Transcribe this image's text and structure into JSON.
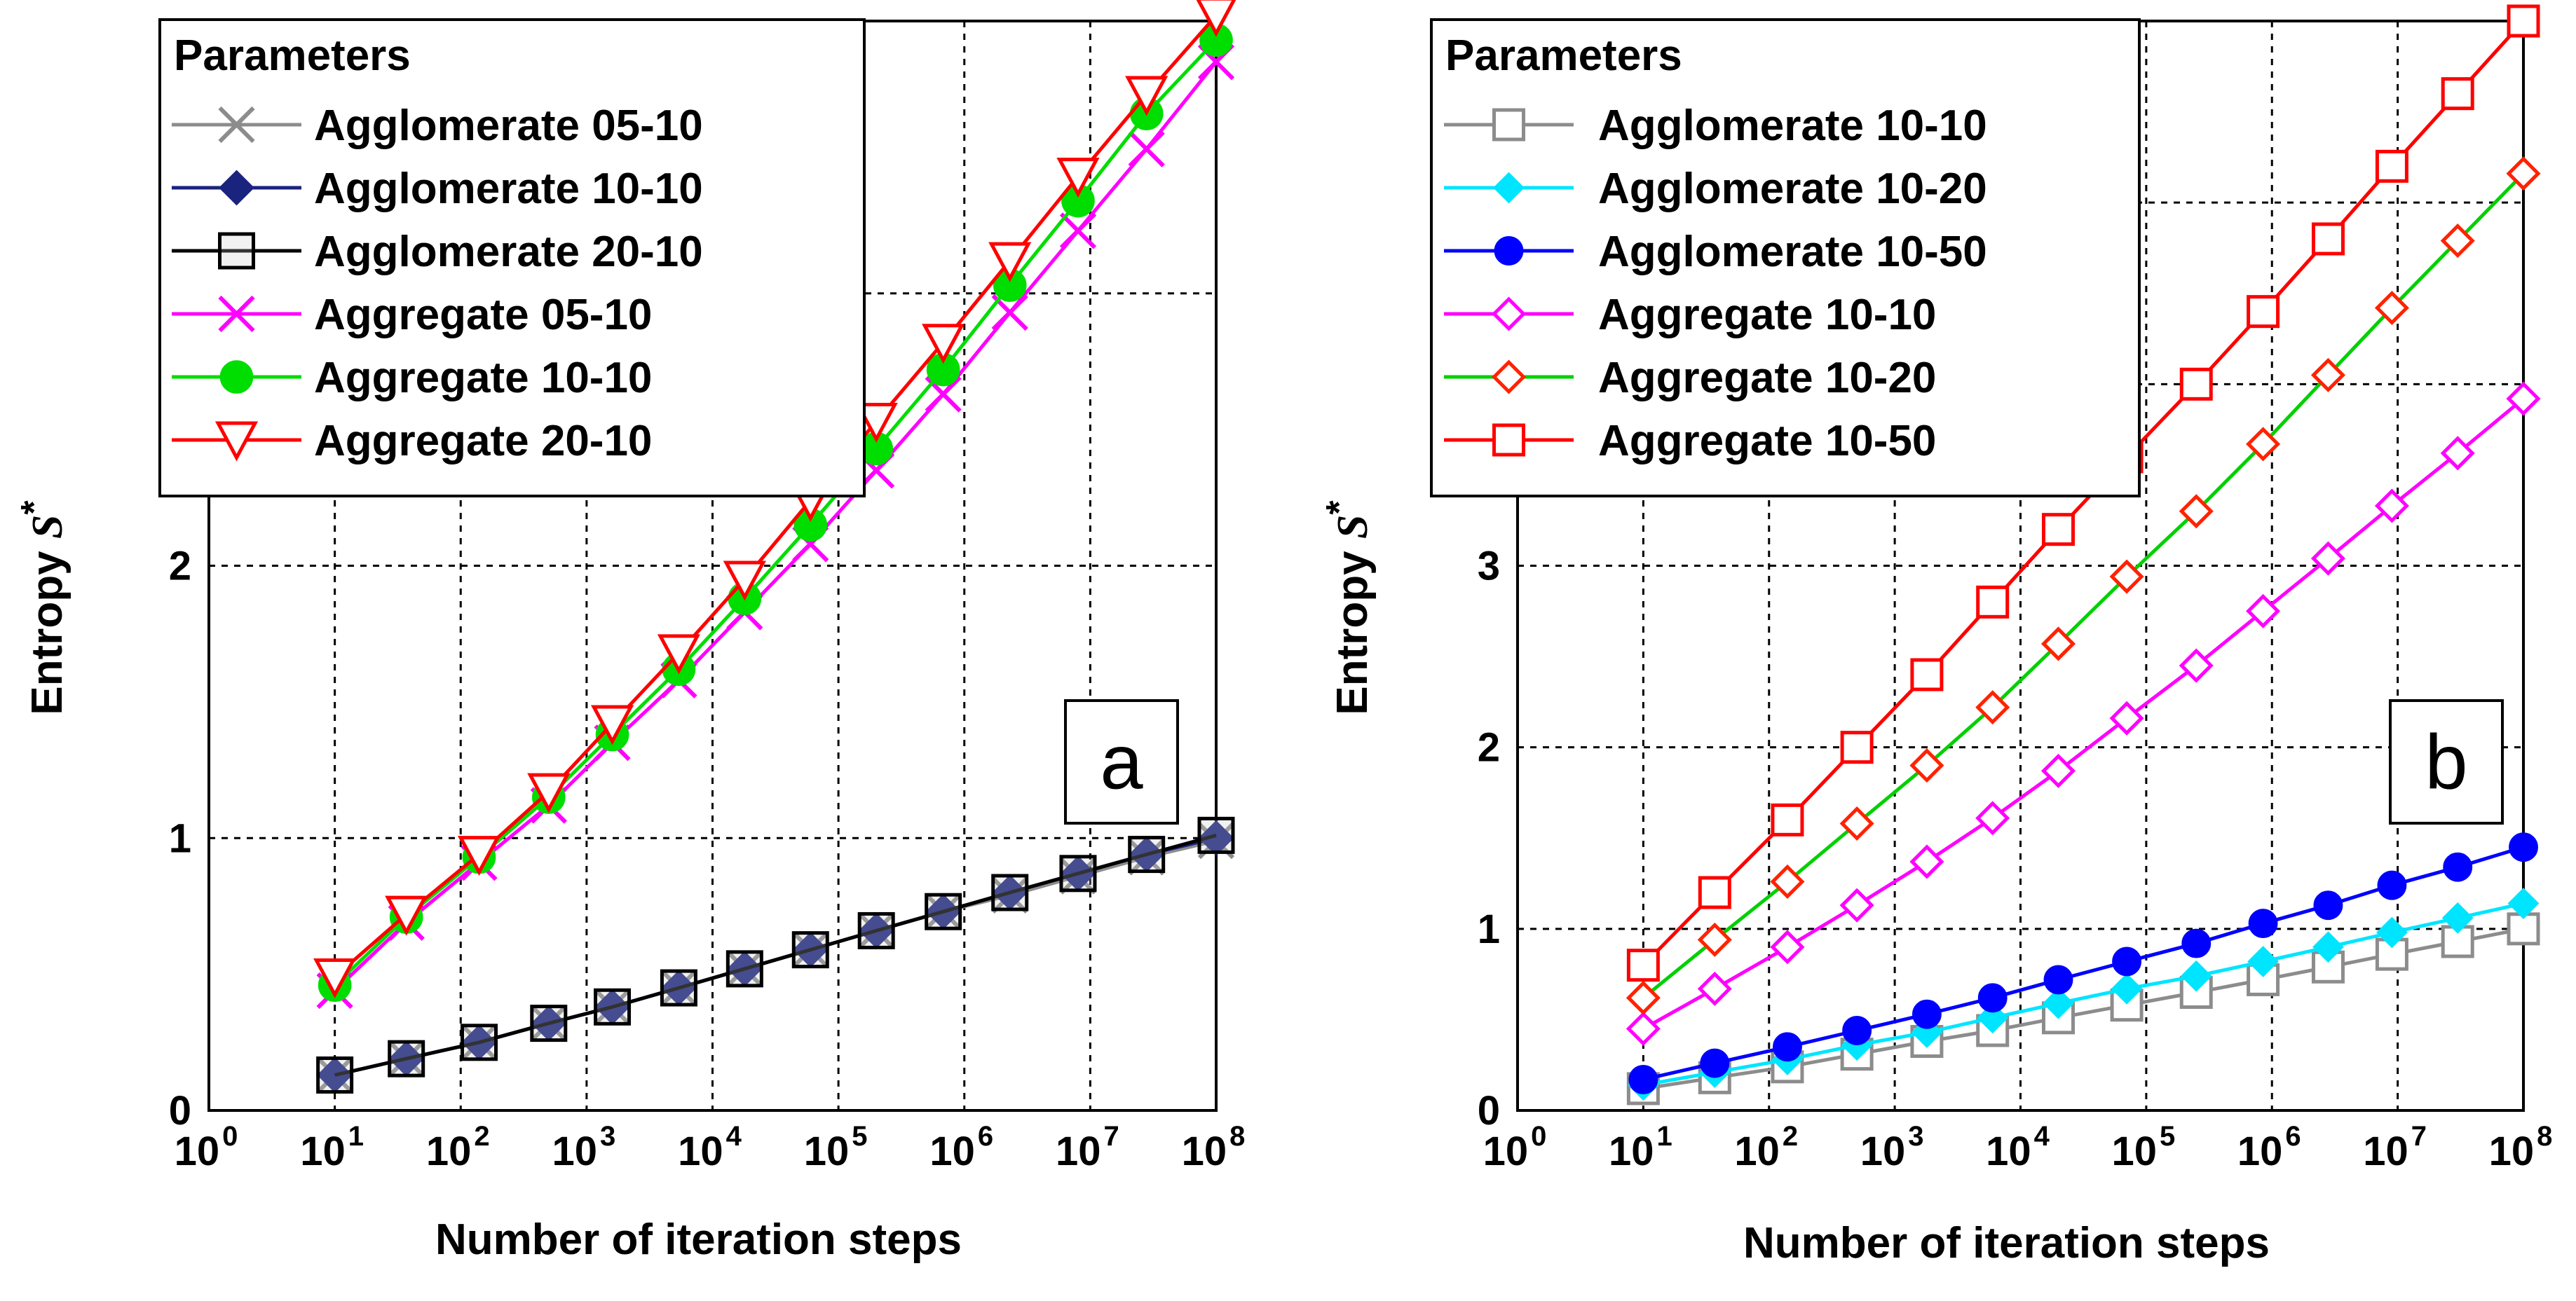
{
  "chart_data": [
    {
      "type": "line",
      "panel_label": "a",
      "xscale": "log",
      "xlim": [
        1,
        100000000
      ],
      "ylim": [
        0,
        4
      ],
      "xlabel": "Number of iteration steps",
      "ylabel_main": "Entropy ",
      "ylabel_symbol": "S*",
      "x_tick_labels": [
        "10^0",
        "10^1",
        "10^2",
        "10^3",
        "10^4",
        "10^5",
        "10^6",
        "10^7",
        "10^8"
      ],
      "y_ticks": [
        0,
        1,
        2,
        3,
        4
      ],
      "y_tick_labels": [
        "0",
        "1",
        "2"
      ],
      "legend_title": "Parameters",
      "legend_position": "top-left",
      "x": [
        10,
        37,
        140,
        500,
        1600,
        5400,
        18000,
        60000,
        200000,
        680000,
        2300000,
        8000000,
        28000000,
        100000000
      ],
      "series": [
        {
          "name": "Agglomerate 05-10",
          "color": "#8c8c8c",
          "marker": "x",
          "values": [
            0.13,
            0.19,
            0.25,
            0.32,
            0.38,
            0.45,
            0.52,
            0.59,
            0.66,
            0.73,
            0.79,
            0.86,
            0.93,
            0.99
          ]
        },
        {
          "name": "Agglomerate 10-10",
          "color": "#1a237e",
          "marker": "diamond",
          "values": [
            0.13,
            0.19,
            0.25,
            0.32,
            0.38,
            0.45,
            0.52,
            0.59,
            0.66,
            0.73,
            0.8,
            0.87,
            0.94,
            1.0
          ]
        },
        {
          "name": "Agglomerate 20-10",
          "color": "#000000",
          "marker": "square",
          "values": [
            0.13,
            0.19,
            0.25,
            0.32,
            0.38,
            0.45,
            0.52,
            0.59,
            0.66,
            0.73,
            0.8,
            0.87,
            0.94,
            1.01
          ]
        },
        {
          "name": "Aggregate 05-10",
          "color": "#ff00ff",
          "marker": "x",
          "values": [
            0.44,
            0.69,
            0.91,
            1.12,
            1.35,
            1.58,
            1.83,
            2.08,
            2.35,
            2.63,
            2.93,
            3.23,
            3.53,
            3.85
          ]
        },
        {
          "name": "Aggregate 10-10",
          "color": "#00dd00",
          "marker": "circle",
          "values": [
            0.46,
            0.71,
            0.93,
            1.15,
            1.38,
            1.62,
            1.88,
            2.15,
            2.43,
            2.72,
            3.03,
            3.34,
            3.66,
            3.93
          ]
        },
        {
          "name": "Aggregate 20-10",
          "color": "#ff0000",
          "marker": "triangle-down",
          "values": [
            0.49,
            0.72,
            0.94,
            1.17,
            1.42,
            1.68,
            1.95,
            2.24,
            2.53,
            2.82,
            3.12,
            3.43,
            3.73,
            4.02
          ]
        }
      ]
    },
    {
      "type": "line",
      "panel_label": "b",
      "xscale": "log",
      "xlim": [
        1,
        100000000
      ],
      "ylim": [
        0,
        6
      ],
      "xlabel": "Number of iteration steps",
      "ylabel_main": "Entropy ",
      "ylabel_symbol": "S*",
      "x_tick_labels": [
        "10^0",
        "10^1",
        "10^2",
        "10^3",
        "10^4",
        "10^5",
        "10^6",
        "10^7",
        "10^8"
      ],
      "y_ticks": [
        0,
        1,
        2,
        3,
        4,
        5,
        6
      ],
      "y_tick_labels": [
        "0",
        "1",
        "2",
        "3"
      ],
      "legend_title": "Parameters",
      "legend_position": "top-left",
      "x": [
        10,
        37,
        140,
        500,
        1800,
        6000,
        20000,
        70000,
        250000,
        850000,
        2800000,
        9000000,
        30000000,
        100000000
      ],
      "series": [
        {
          "name": "Agglomerate 10-10",
          "color": "#8c8c8c",
          "marker": "square",
          "values": [
            0.12,
            0.18,
            0.24,
            0.31,
            0.38,
            0.44,
            0.51,
            0.58,
            0.65,
            0.72,
            0.79,
            0.86,
            0.93,
            1.0
          ]
        },
        {
          "name": "Agglomerate  10-20",
          "color": "#00e5ff",
          "marker": "diamond",
          "values": [
            0.14,
            0.21,
            0.28,
            0.36,
            0.43,
            0.51,
            0.59,
            0.67,
            0.74,
            0.82,
            0.9,
            0.98,
            1.06,
            1.14
          ]
        },
        {
          "name": "Agglomerate 10-50",
          "color": "#0000ff",
          "marker": "circle",
          "values": [
            0.17,
            0.26,
            0.35,
            0.44,
            0.53,
            0.62,
            0.72,
            0.82,
            0.92,
            1.03,
            1.13,
            1.24,
            1.34,
            1.45
          ]
        },
        {
          "name": "Aggregate 10-10",
          "color": "#ff00ff",
          "marker": "open-diamond",
          "values": [
            0.45,
            0.67,
            0.9,
            1.13,
            1.37,
            1.61,
            1.87,
            2.16,
            2.45,
            2.75,
            3.04,
            3.33,
            3.62,
            3.92
          ]
        },
        {
          "name": "Aggregate 10-20",
          "color": "#00d000",
          "marker": "open-diamond-red",
          "values": [
            0.62,
            0.94,
            1.26,
            1.58,
            1.9,
            2.22,
            2.57,
            2.94,
            3.3,
            3.67,
            4.05,
            4.42,
            4.79,
            5.16
          ]
        },
        {
          "name": "Aggregate 10-50",
          "color": "#ff0000",
          "marker": "square",
          "values": [
            0.8,
            1.2,
            1.6,
            2.0,
            2.4,
            2.8,
            3.2,
            3.6,
            4.0,
            4.4,
            4.8,
            5.2,
            5.6,
            6.0
          ]
        }
      ]
    }
  ]
}
